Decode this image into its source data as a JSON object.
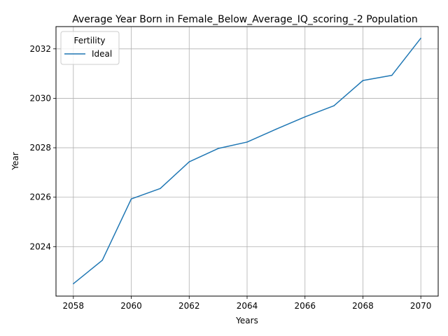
{
  "chart_data": {
    "type": "line",
    "title": "Average Year Born in Female_Below_Average_IQ_scoring_-2 Population",
    "xlabel": "Years",
    "ylabel": "Year",
    "x": [
      2058,
      2059,
      2060,
      2061,
      2062,
      2063,
      2064,
      2065,
      2066,
      2067,
      2068,
      2069,
      2070
    ],
    "series": [
      {
        "name": "Ideal",
        "color": "#1f77b4",
        "values": [
          2022.5,
          2023.45,
          2025.93,
          2026.35,
          2027.43,
          2027.97,
          2028.23,
          2028.75,
          2029.25,
          2029.7,
          2030.72,
          2030.93,
          2032.43
        ]
      }
    ],
    "xlim": [
      2057.4,
      2070.6
    ],
    "ylim": [
      2022.0,
      2032.9
    ],
    "xticks": [
      "2058",
      "2060",
      "2062",
      "2064",
      "2066",
      "2068",
      "2070"
    ],
    "yticks": [
      "2024",
      "2026",
      "2028",
      "2030",
      "2032"
    ],
    "grid": true,
    "legend": {
      "title": "Fertility",
      "position": "upper left"
    }
  }
}
